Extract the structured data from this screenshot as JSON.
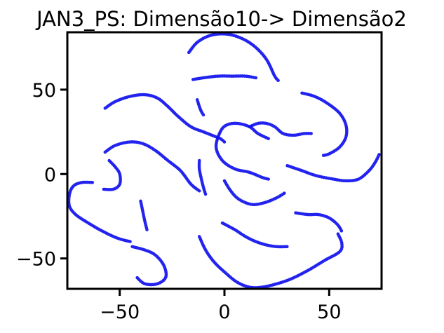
{
  "chart_data": {
    "type": "scatter",
    "title": "JAN3_PS: Dimensão10-> Dimensão2",
    "xlabel": "",
    "ylabel": "",
    "xlim": [
      -75,
      75
    ],
    "ylim": [
      -68,
      84
    ],
    "xticks": [
      -50,
      0,
      50
    ],
    "yticks": [
      -50,
      0,
      50
    ],
    "xtick_labels": [
      "−50",
      "0",
      "50"
    ],
    "ytick_labels": [
      "−50",
      "0",
      "50"
    ],
    "grid": false,
    "color": "#1010ee",
    "series": [
      {
        "points": [
          [
            -17,
            72
          ],
          [
            -13,
            78
          ],
          [
            -7,
            82
          ],
          [
            0,
            83
          ],
          [
            7,
            81
          ],
          [
            14,
            76
          ],
          [
            20,
            68
          ],
          [
            24,
            58
          ],
          [
            26,
            55
          ]
        ]
      },
      {
        "points": [
          [
            -15,
            56
          ],
          [
            -10,
            57
          ],
          [
            -3,
            58
          ],
          [
            4,
            58
          ],
          [
            10,
            58
          ],
          [
            15,
            57
          ]
        ]
      },
      {
        "points": [
          [
            -13,
            44
          ],
          [
            -12,
            40
          ],
          [
            -11,
            37
          ],
          [
            -10,
            35
          ]
        ]
      },
      {
        "points": [
          [
            -57,
            39
          ],
          [
            -52,
            43
          ],
          [
            -45,
            46
          ],
          [
            -38,
            47
          ],
          [
            -32,
            45
          ],
          [
            -27,
            40
          ],
          [
            -22,
            34
          ],
          [
            -16,
            28
          ],
          [
            -10,
            25
          ],
          [
            -6,
            23
          ],
          [
            -2,
            21
          ],
          [
            0,
            19
          ]
        ]
      },
      {
        "points": [
          [
            -57,
            13
          ],
          [
            -52,
            17
          ],
          [
            -45,
            19
          ],
          [
            -39,
            18
          ],
          [
            -33,
            14
          ],
          [
            -27,
            8
          ],
          [
            -21,
            2
          ],
          [
            -16,
            -6
          ],
          [
            -12,
            -10
          ]
        ]
      },
      {
        "points": [
          [
            -12,
            8
          ],
          [
            -12,
            3
          ],
          [
            -11,
            -3
          ],
          [
            -10,
            -8
          ],
          [
            -9,
            -12
          ]
        ]
      },
      {
        "points": [
          [
            -55,
            8
          ],
          [
            -52,
            4
          ],
          [
            -50,
            0
          ],
          [
            -50,
            -6
          ],
          [
            -53,
            -9
          ],
          [
            -58,
            -9
          ]
        ]
      },
      {
        "points": [
          [
            -63,
            -5
          ],
          [
            -68,
            -5
          ],
          [
            -72,
            -7
          ],
          [
            -74,
            -12
          ],
          [
            -74,
            -19
          ],
          [
            -71,
            -24
          ],
          [
            -65,
            -29
          ],
          [
            -58,
            -34
          ],
          [
            -51,
            -38
          ],
          [
            -45,
            -40
          ]
        ]
      },
      {
        "points": [
          [
            -40,
            -16
          ],
          [
            -39,
            -22
          ],
          [
            -38,
            -28
          ],
          [
            -37,
            -33
          ]
        ]
      },
      {
        "points": [
          [
            -44,
            -43
          ],
          [
            -38,
            -45
          ],
          [
            -33,
            -48
          ],
          [
            -29,
            -54
          ],
          [
            -28,
            -61
          ],
          [
            -32,
            -65
          ],
          [
            -38,
            -65
          ],
          [
            -42,
            -61
          ]
        ]
      },
      {
        "points": [
          [
            -12,
            -37
          ],
          [
            -9,
            -45
          ],
          [
            -5,
            -52
          ],
          [
            0,
            -58
          ],
          [
            6,
            -64
          ],
          [
            12,
            -67
          ],
          [
            18,
            -67
          ],
          [
            25,
            -65
          ],
          [
            32,
            -62
          ],
          [
            40,
            -57
          ],
          [
            48,
            -51
          ],
          [
            55,
            -46
          ],
          [
            56,
            -41
          ],
          [
            54,
            -35
          ]
        ]
      },
      {
        "points": [
          [
            -1,
            -29
          ],
          [
            5,
            -33
          ],
          [
            10,
            -37
          ],
          [
            15,
            -40
          ],
          [
            20,
            -42
          ],
          [
            25,
            -43
          ],
          [
            30,
            -43
          ]
        ]
      },
      {
        "points": [
          [
            34,
            -23
          ],
          [
            40,
            -24
          ],
          [
            45,
            -24
          ],
          [
            50,
            -26
          ],
          [
            54,
            -30
          ],
          [
            56,
            -34
          ]
        ]
      },
      {
        "points": [
          [
            0,
            -4
          ],
          [
            3,
            -10
          ],
          [
            7,
            -15
          ],
          [
            13,
            -18
          ],
          [
            19,
            -17
          ],
          [
            25,
            -14
          ],
          [
            29,
            -11
          ]
        ]
      },
      {
        "points": [
          [
            21,
            21
          ],
          [
            16,
            24
          ],
          [
            12,
            28
          ],
          [
            6,
            30
          ],
          [
            1,
            29
          ],
          [
            -2,
            25
          ],
          [
            -4,
            16
          ],
          [
            -1,
            8
          ],
          [
            5,
            3
          ],
          [
            12,
            1
          ],
          [
            18,
            -2
          ],
          [
            21,
            -3
          ]
        ]
      },
      {
        "points": [
          [
            12,
            28
          ],
          [
            16,
            30
          ],
          [
            20,
            30
          ],
          [
            24,
            28
          ],
          [
            28,
            24
          ],
          [
            33,
            23
          ],
          [
            38,
            24
          ],
          [
            42,
            24
          ]
        ]
      },
      {
        "points": [
          [
            37,
            48
          ],
          [
            43,
            46
          ],
          [
            49,
            42
          ],
          [
            55,
            36
          ],
          [
            58,
            29
          ],
          [
            58,
            22
          ],
          [
            55,
            16
          ],
          [
            50,
            12
          ],
          [
            47,
            11
          ]
        ]
      },
      {
        "points": [
          [
            30,
            5
          ],
          [
            37,
            2
          ],
          [
            44,
            -1
          ],
          [
            52,
            -3
          ],
          [
            58,
            -4
          ],
          [
            64,
            -3
          ],
          [
            69,
            2
          ],
          [
            72,
            7
          ],
          [
            74,
            12
          ]
        ]
      }
    ]
  }
}
